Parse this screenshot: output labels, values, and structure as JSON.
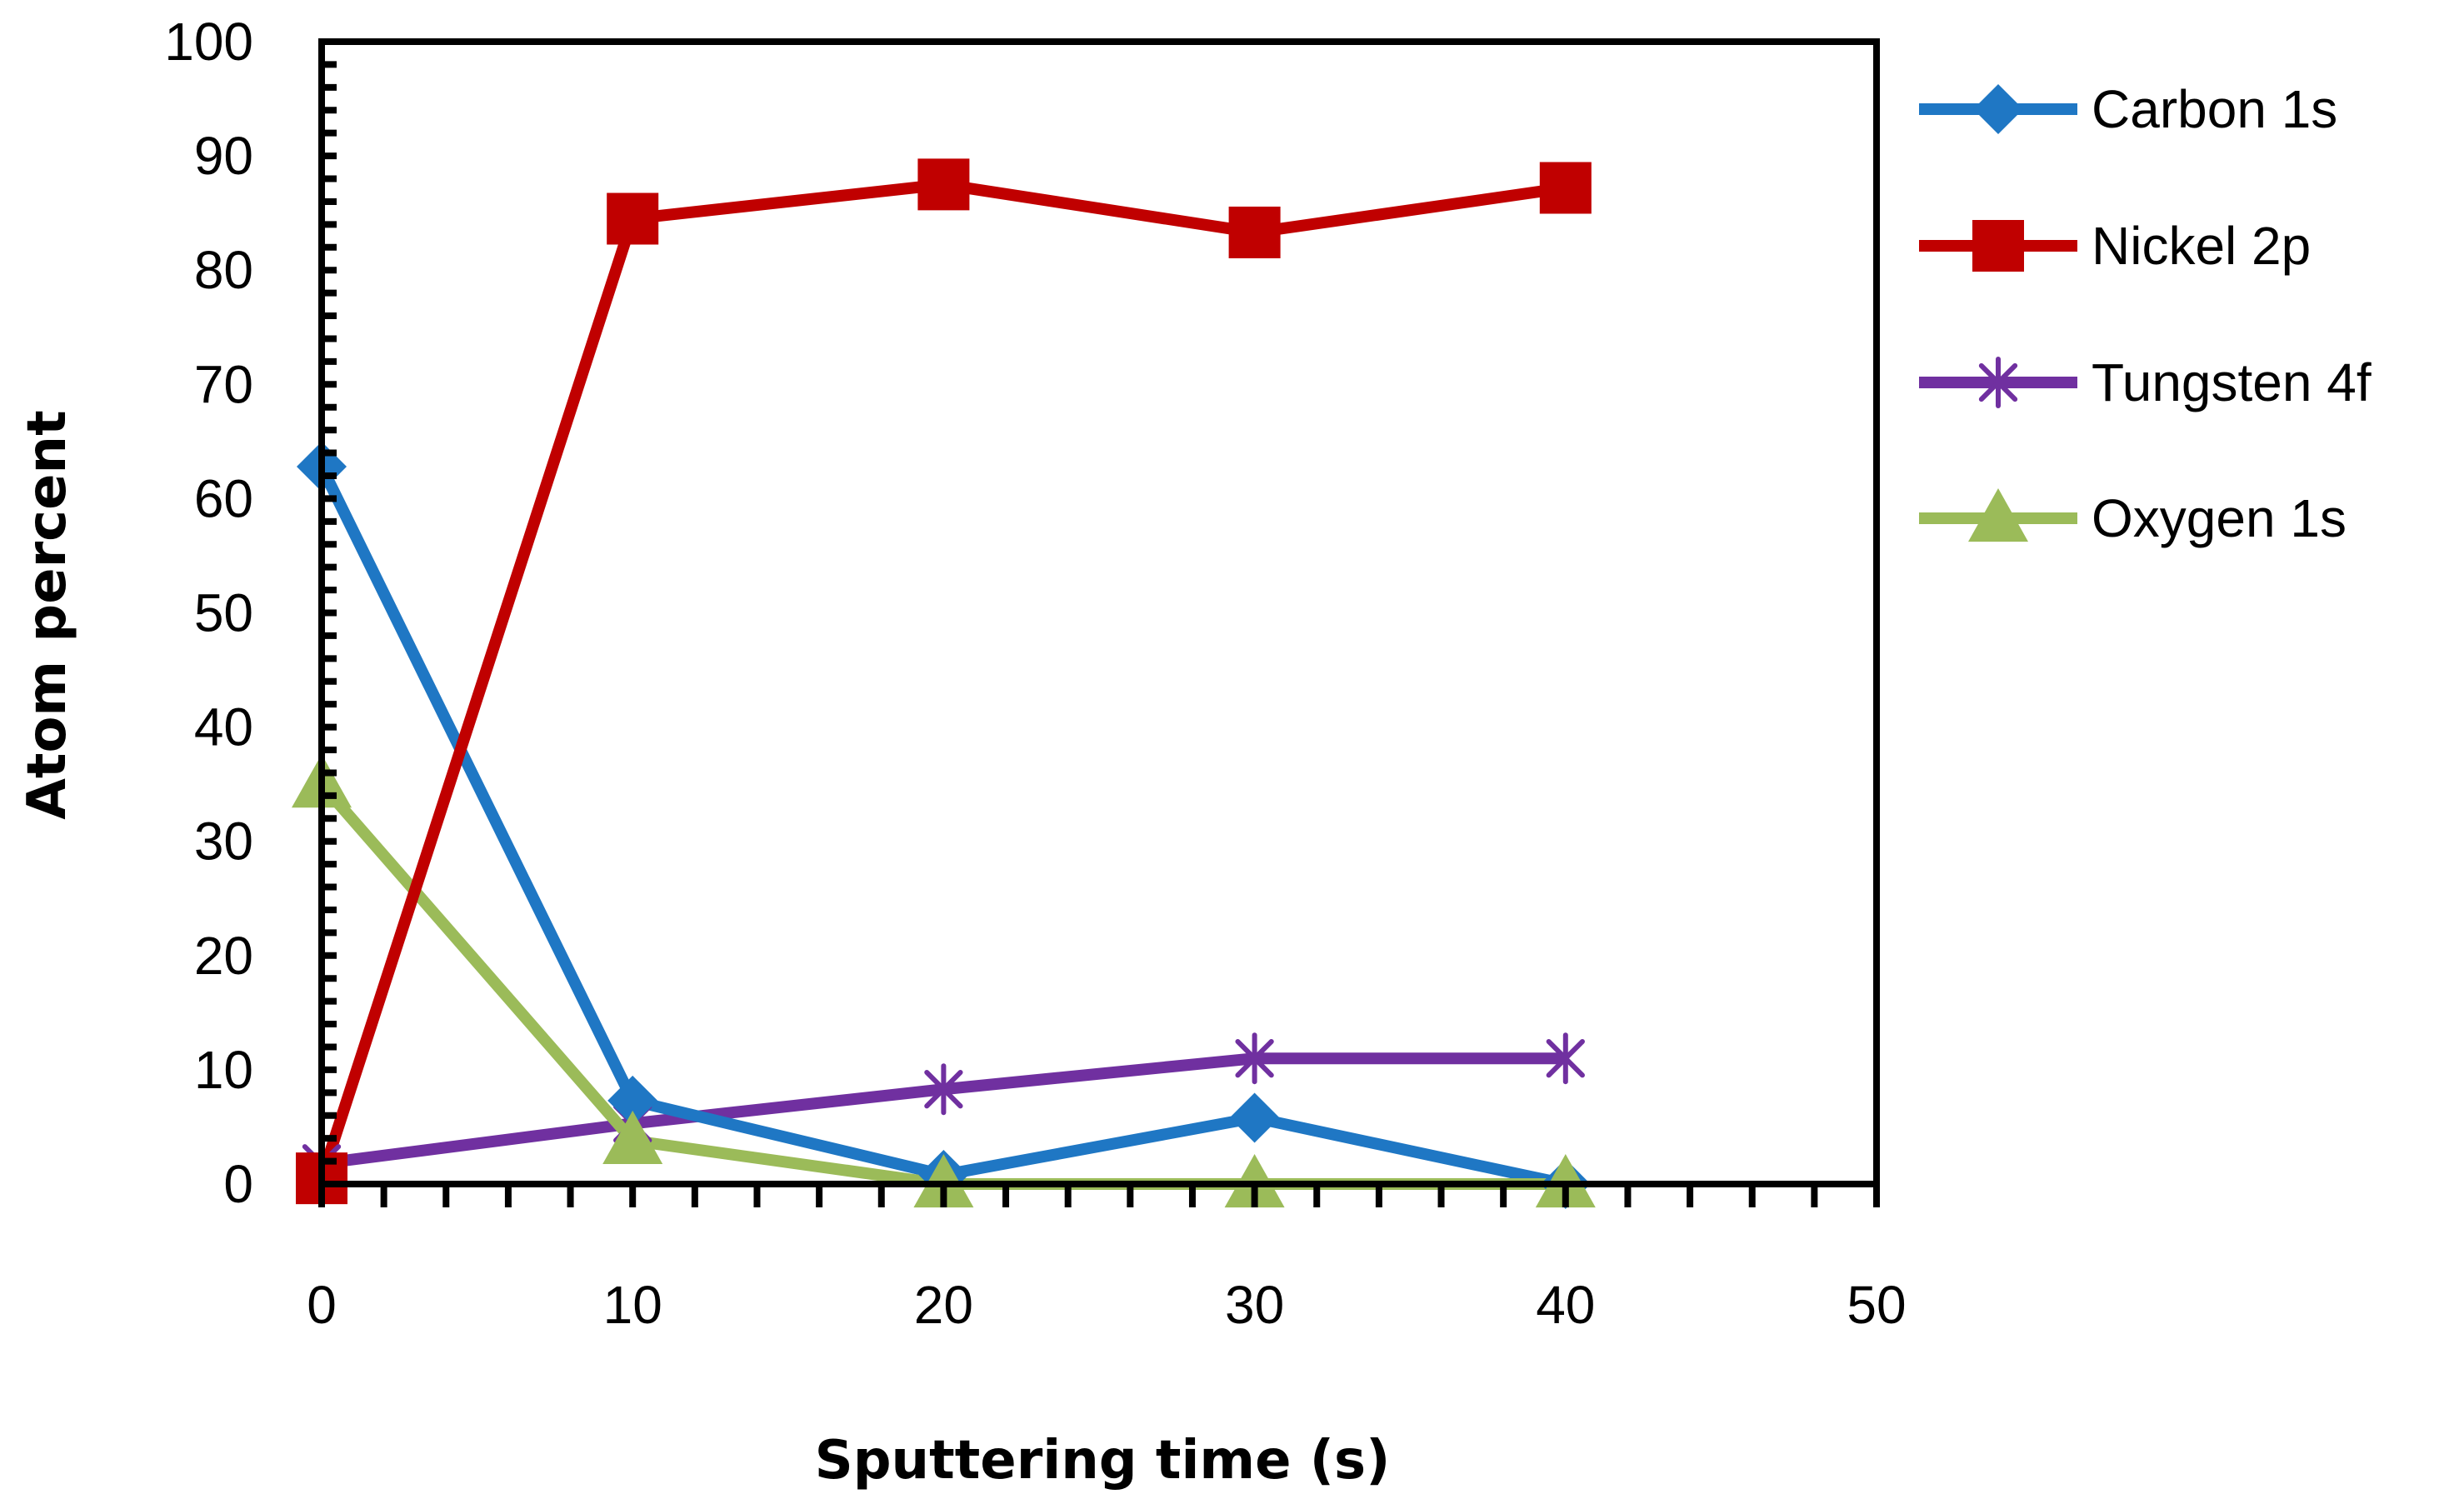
{
  "chart_data": {
    "type": "line",
    "xlabel": "Sputtering time (s)",
    "ylabel": "Atom percent",
    "xlim": [
      0,
      50
    ],
    "ylim": [
      0,
      100
    ],
    "x_ticks": [
      0,
      10,
      20,
      30,
      40,
      50
    ],
    "y_ticks": [
      0,
      10,
      20,
      30,
      40,
      50,
      60,
      70,
      80,
      90,
      100
    ],
    "x_tick_labels": [
      "0",
      "10",
      "20",
      "30",
      "40",
      "50"
    ],
    "y_tick_labels": [
      "0",
      "10",
      "20",
      "30",
      "40",
      "50",
      "60",
      "70",
      "80",
      "90",
      "100"
    ],
    "grid": false,
    "legend_position": "right",
    "series": [
      {
        "name": "Carbon 1s",
        "color": "#1f77c4",
        "marker": "diamond",
        "x": [
          0,
          10,
          20,
          30,
          40
        ],
        "y": [
          62.8,
          7.3,
          0.8,
          5.8,
          0
        ]
      },
      {
        "name": "Nickel 2p",
        "color": "#c00000",
        "marker": "square",
        "x": [
          0,
          10,
          20,
          30,
          40
        ],
        "y": [
          0.5,
          84.5,
          87.5,
          83.3,
          87.2
        ]
      },
      {
        "name": "Tungsten 4f",
        "color": "#7030a0",
        "marker": "asterisk",
        "x": [
          0,
          10,
          20,
          30,
          40
        ],
        "y": [
          1.8,
          5.3,
          8.3,
          11,
          11
        ]
      },
      {
        "name": "Oxygen 1s",
        "color": "#9bbb59",
        "marker": "triangle",
        "x": [
          0,
          10,
          20,
          30,
          40
        ],
        "y": [
          35,
          3.8,
          0,
          0,
          0
        ]
      }
    ]
  }
}
